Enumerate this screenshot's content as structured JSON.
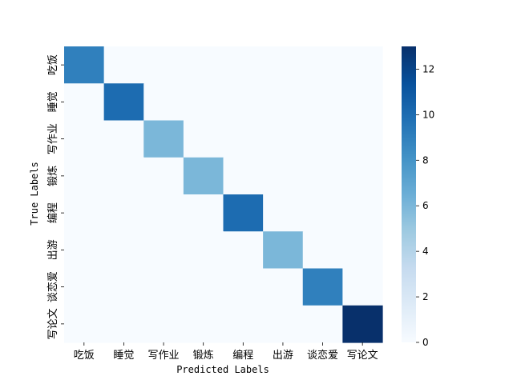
{
  "chart_data": {
    "type": "heatmap",
    "title": "",
    "xlabel": "Predicted Labels",
    "ylabel": "True Labels",
    "x_categories": [
      "吃饭",
      "睡觉",
      "写作业",
      "锻炼",
      "编程",
      "出游",
      "谈恋爱",
      "写论文"
    ],
    "y_categories": [
      "吃饭",
      "睡觉",
      "写作业",
      "锻炼",
      "编程",
      "出游",
      "谈恋爱",
      "写论文"
    ],
    "values": [
      [
        9,
        0,
        0,
        0,
        0,
        0,
        0,
        0
      ],
      [
        0,
        10,
        0,
        0,
        0,
        0,
        0,
        0
      ],
      [
        0,
        0,
        6,
        0,
        0,
        0,
        0,
        0
      ],
      [
        0,
        0,
        0,
        6,
        0,
        0,
        0,
        0
      ],
      [
        0,
        0,
        0,
        0,
        10,
        0,
        0,
        0
      ],
      [
        0,
        0,
        0,
        0,
        0,
        6,
        0,
        0
      ],
      [
        0,
        0,
        0,
        0,
        0,
        0,
        9,
        0
      ],
      [
        0,
        0,
        0,
        0,
        0,
        0,
        0,
        13
      ]
    ],
    "colorbar": {
      "min": 0,
      "max": 13,
      "ticks": [
        0,
        2,
        4,
        6,
        8,
        10,
        12
      ],
      "colormap": "Blues"
    }
  }
}
